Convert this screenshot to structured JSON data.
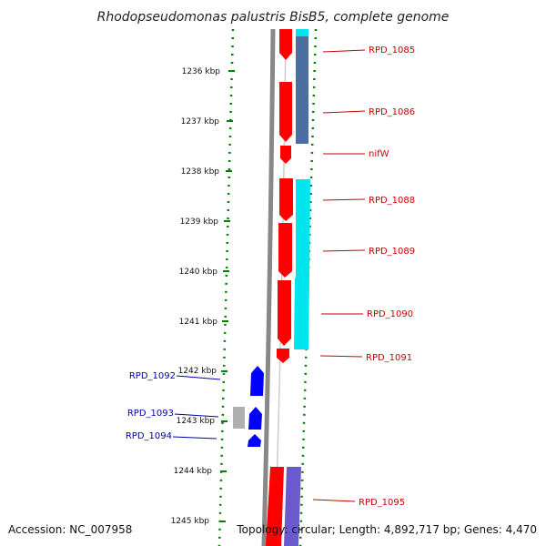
{
  "title": "Rhodopseudomonas palustris BisB5, complete genome",
  "ticks": [
    {
      "label": "1236 kbp"
    },
    {
      "label": "1237 kbp"
    },
    {
      "label": "1238 kbp"
    },
    {
      "label": "1239 kbp"
    },
    {
      "label": "1240 kbp"
    },
    {
      "label": "1241 kbp"
    },
    {
      "label": "1242 kbp"
    },
    {
      "label": "1243 kbp"
    },
    {
      "label": "1244 kbp"
    },
    {
      "label": "1245 kbp"
    }
  ],
  "genes_right": [
    "RPD_1085",
    "RPD_1086",
    "nifW",
    "RPD_1088",
    "RPD_1089",
    "RPD_1090",
    "RPD_1091",
    "RPD_1095"
  ],
  "genes_left": [
    "RPD_1092",
    "RPD_1093",
    "RPD_1094"
  ],
  "footer": {
    "accession": "Accession: NC_007958",
    "topology": "Topology: circular; Length: 4,892,717 bp; Genes: 4,470"
  },
  "colors": {
    "forward_gene": "#ff0000",
    "reverse_gene": "#0000ff",
    "cyan_track": "#00e5ee",
    "steelblue_track": "#4a6fa0",
    "purple_track": "#6a5acd",
    "gray_feature": "#b0b0b0",
    "backbone": "#888888",
    "tick_green": "#008000"
  }
}
